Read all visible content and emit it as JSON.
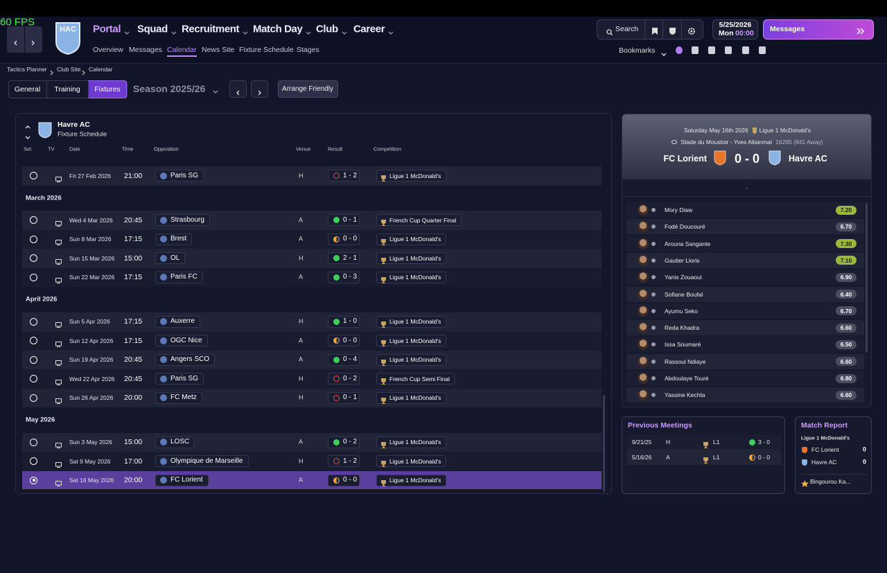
{
  "overlay": {
    "fps": "60 FPS"
  },
  "nav": {
    "badge": "HAC",
    "menu": [
      "Portal",
      "Squad",
      "Recruitment",
      "Match Day",
      "Club",
      "Career"
    ],
    "submenu": [
      "Overview",
      "Messages",
      "Calendar",
      "News Site",
      "Fixture Schedule",
      "Stages"
    ]
  },
  "toolbar": {
    "search": "Search",
    "date": "5/25/2026",
    "weekday": "Mon",
    "time": "00:00",
    "messages": "Messages",
    "bookmarks": "Bookmarks"
  },
  "breadcrumbs": [
    "Tactics Planner",
    "Club Site",
    "Calendar"
  ],
  "tabs": [
    "General",
    "Training",
    "Fixtures"
  ],
  "season": "Season 2025/26",
  "arrange_friendly": "Arrange Friendly",
  "schedule": {
    "team": "Havre AC",
    "subtitle": "Fixture Schedule",
    "columns": [
      "Sel.",
      "TV",
      "Date",
      "Time",
      "Opposition",
      "Venue",
      "Result",
      "Competition"
    ],
    "groups": [
      {
        "rows": [
          {
            "date": "Fri 27 Feb 2026",
            "time": "21:00",
            "opponent": "Paris SG",
            "venue": "H",
            "result": "1 - 2",
            "competition": "Ligue 1 McDonald's"
          }
        ]
      },
      {
        "month": "March 2026",
        "rows": [
          {
            "date": "Wed 4 Mar 2026",
            "time": "20:45",
            "opponent": "Strasbourg",
            "venue": "A",
            "result": "0 - 1",
            "competition": "French Cup Quarter Final"
          },
          {
            "date": "Sun 8 Mar 2026",
            "time": "17:15",
            "opponent": "Brest",
            "venue": "A",
            "result": "0 - 0",
            "competition": "Ligue 1 McDonald's"
          },
          {
            "date": "Sun 15 Mar 2026",
            "time": "15:00",
            "opponent": "OL",
            "venue": "H",
            "result": "2 - 1",
            "competition": "Ligue 1 McDonald's"
          },
          {
            "date": "Sun 22 Mar 2026",
            "time": "17:15",
            "opponent": "Paris FC",
            "venue": "A",
            "result": "0 - 3",
            "competition": "Ligue 1 McDonald's"
          }
        ]
      },
      {
        "month": "April 2026",
        "rows": [
          {
            "date": "Sun 5 Apr 2026",
            "time": "17:15",
            "opponent": "Auxerre",
            "venue": "H",
            "result": "1 - 0",
            "competition": "Ligue 1 McDonald's"
          },
          {
            "date": "Sun 12 Apr 2026",
            "time": "17:15",
            "opponent": "OGC Nice",
            "venue": "A",
            "result": "0 - 0",
            "competition": "Ligue 1 McDonald's"
          },
          {
            "date": "Sun 19 Apr 2026",
            "time": "20:45",
            "opponent": "Angers SCO",
            "venue": "A",
            "result": "0 - 4",
            "competition": "Ligue 1 McDonald's"
          },
          {
            "date": "Wed 22 Apr 2026",
            "time": "20:45",
            "opponent": "Paris SG",
            "venue": "H",
            "result": "0 - 2",
            "competition": "French Cup Semi Final"
          },
          {
            "date": "Sun 26 Apr 2026",
            "time": "20:00",
            "opponent": "FC Metz",
            "venue": "H",
            "result": "0 - 1",
            "competition": "Ligue 1 McDonald's"
          }
        ]
      },
      {
        "month": "May 2026",
        "rows": [
          {
            "date": "Sun 3 May 2026",
            "time": "15:00",
            "opponent": "LOSC",
            "venue": "A",
            "result": "0 - 2",
            "competition": "Ligue 1 McDonald's"
          },
          {
            "date": "Sat 9 May 2026",
            "time": "17:00",
            "opponent": "Olympique de Marseille",
            "venue": "H",
            "result": "1 - 2",
            "competition": "Ligue 1 McDonald's"
          },
          {
            "date": "Sat 16 May 2026",
            "time": "20:00",
            "opponent": "FC Lorient",
            "venue": "A",
            "result": "0 - 0",
            "competition": "Ligue 1 McDonald's"
          }
        ]
      }
    ]
  },
  "match": {
    "date": "Saturday May 16th 2026",
    "competition": "Ligue 1 McDonald's",
    "stadium": "Stade du Moustoir - Yves Allainmat",
    "attendance": "16265 (841 Away)",
    "home": "FC Lorient",
    "score": "0 - 0",
    "away": "Havre AC",
    "players": [
      {
        "name": "Mory Diaw",
        "rating": "7.20"
      },
      {
        "name": "Fodé Doucouré",
        "rating": "6.70"
      },
      {
        "name": "Arouna Sangante",
        "rating": "7.30"
      },
      {
        "name": "Gautier Lloris",
        "rating": "7.10"
      },
      {
        "name": "Yanis Zouaoui",
        "rating": "6.90"
      },
      {
        "name": "Sofiane Boufal",
        "rating": "6.40"
      },
      {
        "name": "Ayumu Seko",
        "rating": "6.70"
      },
      {
        "name": "Reda Khadra",
        "rating": "6.60"
      },
      {
        "name": "Issa Soumaré",
        "rating": "6.50"
      },
      {
        "name": "Rassoul Ndiaye",
        "rating": "6.60"
      },
      {
        "name": "Abdoulaye Touré",
        "rating": "6.80"
      },
      {
        "name": "Yassine Kechta",
        "rating": "6.60"
      }
    ]
  },
  "previous_meetings": {
    "title": "Previous Meetings",
    "rows": [
      {
        "date": "9/21/25",
        "venue": "H",
        "competition": "L1",
        "result": "3 - 0"
      },
      {
        "date": "5/16/26",
        "venue": "A",
        "competition": "L1",
        "result": "0 - 0"
      }
    ]
  },
  "match_report": {
    "title": "Match Report",
    "competition": "Ligue 1 McDonald's",
    "teams": [
      {
        "name": "FC Lorient",
        "goals": 0
      },
      {
        "name": "Havre AC",
        "goals": 0
      }
    ],
    "player_of_match": "Bingourou Ka..."
  }
}
